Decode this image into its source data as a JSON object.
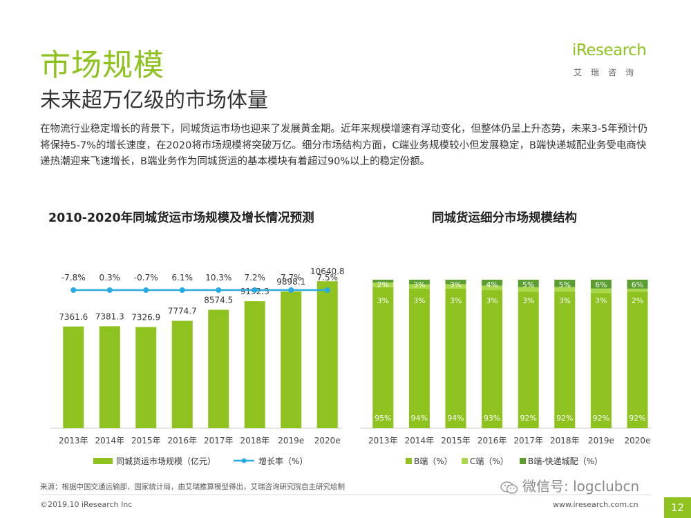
{
  "title": "市场规模",
  "subtitle": "未来超万亿级的市场体量",
  "intro": "在物流行业稳定增长的背景下，同城货运市场也迎来了发展黄金期。近年来规模增速有浮动变化，但整体仍呈上升态势，未来3-5年预计仍将保持5-7%的增长速度，在2020将市场规模将突破万亿。细分市场结构方面，C端业务规模较小但发展稳定，B端快递城配业务受电商快递热潮迎来飞速增长，B端业务作为同城货运的基本模块有着超过90%以上的稳定份额。",
  "logo": {
    "word": "iResearch",
    "sub": "艾瑞咨询"
  },
  "colors": {
    "accent": "#8dc21f",
    "line": "#29abe2",
    "b_seg": "#8dc21f",
    "c_seg": "#a9d84a",
    "exp_seg": "#5a9e2f"
  },
  "chart_data": [
    {
      "type": "bar",
      "title": "2010-2020年同城货运市场规模及增长情况预测",
      "categories": [
        "2013年",
        "2014年",
        "2015年",
        "2016年",
        "2017年",
        "2018年",
        "2019e",
        "2020e"
      ],
      "series": [
        {
          "name": "同城货运市场规模（亿元）",
          "type": "bar",
          "values": [
            7361.6,
            7381.3,
            7326.9,
            7774.7,
            8574.5,
            9192.3,
            9898.1,
            10640.8
          ],
          "labels": [
            "7361.6",
            "7381.3",
            "7326.9",
            "7774.7",
            "8574.5",
            "9192.3",
            "9898.1",
            "10640.8"
          ]
        },
        {
          "name": "增长率（%）",
          "type": "line",
          "values": [
            -7.8,
            0.3,
            -0.7,
            6.1,
            10.3,
            7.2,
            7.7,
            7.5
          ],
          "labels": [
            "-7.8%",
            "0.3%",
            "-0.7%",
            "6.1%",
            "10.3%",
            "7.2%",
            "7.7%",
            "7.5%"
          ]
        }
      ],
      "ylim": [
        0,
        12500
      ],
      "legend": "bottom"
    },
    {
      "type": "bar",
      "stacked": true,
      "title": "同城货运细分市场规模结构",
      "categories": [
        "2013年",
        "2014年",
        "2015年",
        "2016年",
        "2017年",
        "2018年",
        "2019e",
        "2020e"
      ],
      "series": [
        {
          "name": "B端（%）",
          "values": [
            95,
            94,
            94,
            93,
            92,
            92,
            92,
            92
          ],
          "labels": [
            "95%",
            "94%",
            "94%",
            "93%",
            "92%",
            "92%",
            "92%",
            "92%"
          ]
        },
        {
          "name": "C端（%）",
          "values": [
            3,
            3,
            3,
            3,
            3,
            3,
            3,
            2
          ],
          "labels": [
            "3%",
            "3%",
            "3%",
            "3%",
            "3%",
            "3%",
            "3%",
            "2%"
          ]
        },
        {
          "name": "B端-快递城配（%）",
          "values": [
            2,
            3,
            3,
            4,
            5,
            5,
            6,
            6
          ],
          "labels": [
            "2%",
            "3%",
            "3%",
            "4%",
            "5%",
            "5%",
            "6%",
            "6%"
          ]
        }
      ],
      "ylim": [
        0,
        100
      ],
      "legend": "bottom"
    }
  ],
  "source": "来源：根据中国交通运输部、国家统计局，由艾瑞推算模型得出，艾瑞咨询研究院自主研究绘制",
  "wechat": "微信号: logclubcn",
  "copyright": "©2019.10 iResearch Inc",
  "website": "www.iresearch.com.cn",
  "page_number": "12"
}
